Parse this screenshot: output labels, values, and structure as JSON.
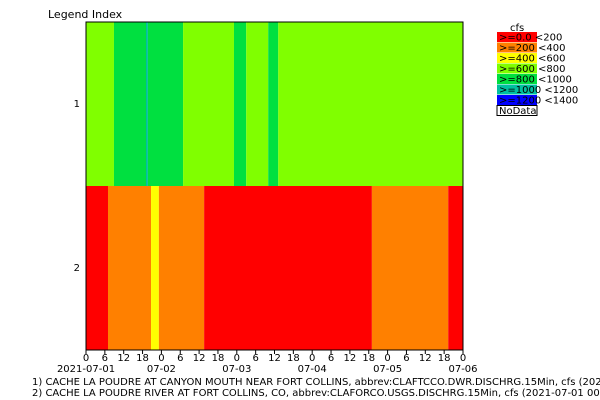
{
  "chart_data": {
    "type": "raster",
    "y_title": "Legend Index",
    "xlim": [
      0,
      120
    ],
    "xticks": [
      {
        "value": 0,
        "label": "0"
      },
      {
        "value": 6,
        "label": "6"
      },
      {
        "value": 12,
        "label": "12"
      },
      {
        "value": 18,
        "label": "18"
      },
      {
        "value": 24,
        "label": "0"
      },
      {
        "value": 30,
        "label": "6"
      },
      {
        "value": 36,
        "label": "12"
      },
      {
        "value": 42,
        "label": "18"
      },
      {
        "value": 48,
        "label": "0"
      },
      {
        "value": 54,
        "label": "6"
      },
      {
        "value": 60,
        "label": "12"
      },
      {
        "value": 66,
        "label": "18"
      },
      {
        "value": 72,
        "label": "0"
      },
      {
        "value": 78,
        "label": "6"
      },
      {
        "value": 84,
        "label": "12"
      },
      {
        "value": 90,
        "label": "18"
      },
      {
        "value": 96,
        "label": "0"
      },
      {
        "value": 102,
        "label": "6"
      },
      {
        "value": 108,
        "label": "12"
      },
      {
        "value": 114,
        "label": "18"
      },
      {
        "value": 120,
        "label": "0"
      }
    ],
    "xdates": [
      {
        "value": 0,
        "label": "2021-07-01"
      },
      {
        "value": 24,
        "label": "07-02"
      },
      {
        "value": 48,
        "label": "07-03"
      },
      {
        "value": 72,
        "label": "07-04"
      },
      {
        "value": 96,
        "label": "07-05"
      },
      {
        "value": 120,
        "label": "07-06"
      }
    ],
    "legend": {
      "title": "cfs",
      "items": [
        {
          "label": ">=0.0 <200",
          "color": "#ff0000"
        },
        {
          "label": ">=200 <400",
          "color": "#ff8000"
        },
        {
          "label": ">=400 <600",
          "color": "#ffff00"
        },
        {
          "label": ">=600 <800",
          "color": "#80ff00"
        },
        {
          "label": ">=800 <1000",
          "color": "#00e040"
        },
        {
          "label": ">=1000 <1200",
          "color": "#00c0a0"
        },
        {
          "label": ">=1200 <1400",
          "color": "#0000ff"
        },
        {
          "label": "NoData",
          "color": "#ffffff"
        }
      ]
    },
    "rows": [
      {
        "name": "1",
        "segments": [
          {
            "start": 0,
            "end": 8.9,
            "level": 3
          },
          {
            "start": 8.9,
            "end": 19.1,
            "level": 4
          },
          {
            "start": 19.1,
            "end": 19.7,
            "level": 5
          },
          {
            "start": 19.7,
            "end": 30.9,
            "level": 4
          },
          {
            "start": 30.9,
            "end": 47.1,
            "level": 3
          },
          {
            "start": 47.1,
            "end": 51,
            "level": 4
          },
          {
            "start": 51,
            "end": 58,
            "level": 3
          },
          {
            "start": 58,
            "end": 61.2,
            "level": 4
          },
          {
            "start": 61.2,
            "end": 120,
            "level": 3
          }
        ]
      },
      {
        "name": "2",
        "segments": [
          {
            "start": 0,
            "end": 7,
            "level": 0
          },
          {
            "start": 7,
            "end": 20.7,
            "level": 1
          },
          {
            "start": 20.7,
            "end": 23.2,
            "level": 2
          },
          {
            "start": 23.2,
            "end": 37.6,
            "level": 1
          },
          {
            "start": 37.6,
            "end": 91,
            "level": 0
          },
          {
            "start": 91,
            "end": 115.3,
            "level": 1
          },
          {
            "start": 115.3,
            "end": 120,
            "level": 0
          }
        ]
      }
    ],
    "footnotes": [
      "1) CACHE LA POUDRE AT CANYON MOUTH NEAR FORT COLLINS, abbrev:CLAFTCCO.DWR.DISCHRG.15Min, cfs (202",
      "2) CACHE LA POUDRE RIVER AT FORT COLLINS, CO, abbrev:CLAFORCO.USGS.DISCHRG.15Min, cfs (2021-07-01 00:0"
    ]
  }
}
